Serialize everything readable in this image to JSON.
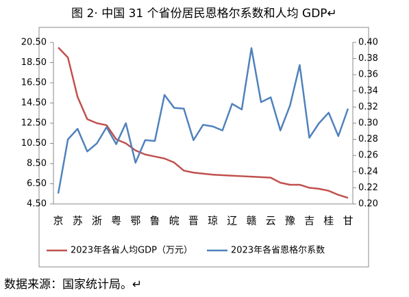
{
  "title_text": "图 2· 中国 31 个省份居民恩格尔系数和人均 GDP↵",
  "source": "数据来源：国家统计局。↵",
  "chart_data": {
    "type": "line",
    "categories": [
      "京",
      null,
      "苏",
      null,
      "浙",
      null,
      "粤",
      null,
      "鄂",
      null,
      "鲁",
      null,
      "皖",
      null,
      "晋",
      null,
      "琼",
      null,
      "辽",
      null,
      "赣",
      null,
      "云",
      null,
      "豫",
      null,
      "吉",
      null,
      "桂",
      null,
      "甘"
    ],
    "series": [
      {
        "name": "2023年各省人均GDP（万元）",
        "color": "#c0504d",
        "axis": "y",
        "values": [
          20.0,
          19.0,
          15.1,
          12.9,
          12.5,
          12.3,
          10.9,
          10.5,
          9.8,
          9.4,
          9.2,
          9.0,
          8.6,
          7.8,
          7.6,
          7.5,
          7.4,
          7.35,
          7.3,
          7.25,
          7.2,
          7.15,
          7.1,
          6.6,
          6.4,
          6.4,
          6.1,
          6.0,
          5.8,
          5.4,
          5.1
        ]
      },
      {
        "name": "2023年各省恩格尔系数",
        "color": "#4f81bd",
        "axis": "y2",
        "values": [
          0.213,
          0.28,
          0.293,
          0.265,
          0.275,
          0.295,
          0.274,
          0.3,
          0.251,
          0.279,
          0.278,
          0.335,
          0.319,
          0.318,
          0.279,
          0.298,
          0.296,
          0.291,
          0.324,
          0.317,
          0.393,
          0.326,
          0.332,
          0.291,
          0.322,
          0.372,
          0.282,
          0.3,
          0.313,
          0.284,
          0.318
        ]
      }
    ],
    "ylim": [
      4.5,
      20.5
    ],
    "yticks": [
      {
        "value": 4.5,
        "label": "4.50"
      },
      {
        "value": 6.5,
        "label": "6.50"
      },
      {
        "value": 8.5,
        "label": "8.50"
      },
      {
        "value": 10.5,
        "label": "10.50"
      },
      {
        "value": 12.5,
        "label": "12.50"
      },
      {
        "value": 14.5,
        "label": "14.50"
      },
      {
        "value": 16.5,
        "label": "16.50"
      },
      {
        "value": 18.5,
        "label": "18.50"
      },
      {
        "value": 20.5,
        "label": "20.50"
      }
    ],
    "y2lim": [
      0.2,
      0.4
    ],
    "y2ticks": [
      {
        "value": 0.2,
        "label": "0.20"
      },
      {
        "value": 0.22,
        "label": "0.22"
      },
      {
        "value": 0.24,
        "label": "0.24"
      },
      {
        "value": 0.26,
        "label": "0.26"
      },
      {
        "value": 0.28,
        "label": "0.28"
      },
      {
        "value": 0.3,
        "label": "0.30"
      },
      {
        "value": 0.32,
        "label": "0.32"
      },
      {
        "value": 0.34,
        "label": "0.34"
      },
      {
        "value": 0.36,
        "label": "0.36"
      },
      {
        "value": 0.38,
        "label": "0.38"
      },
      {
        "value": 0.4,
        "label": "0.40"
      }
    ],
    "grid": false,
    "legend": "bottom"
  }
}
